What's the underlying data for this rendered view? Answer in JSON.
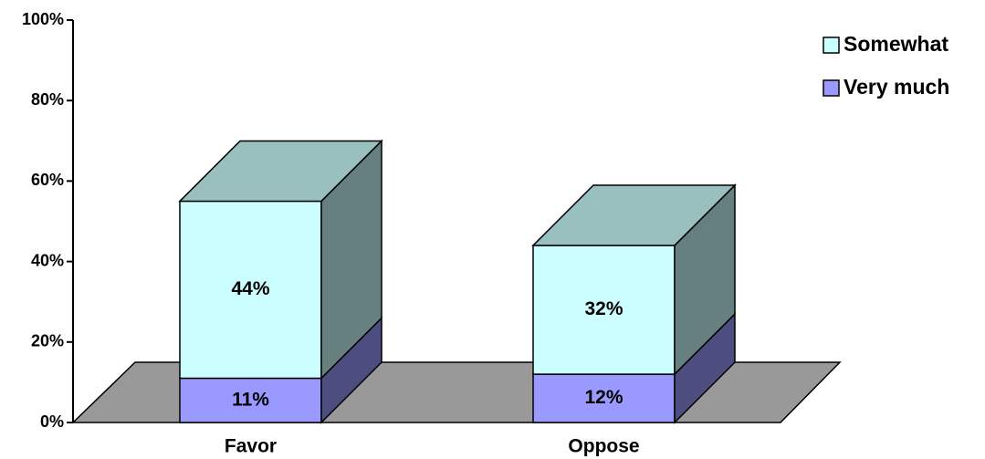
{
  "chart_data": {
    "type": "stacked-bar-3d",
    "categories": [
      "Favor",
      "Oppose"
    ],
    "series": [
      {
        "name": "Very much",
        "color": "#9999ff",
        "values": [
          11,
          12
        ],
        "value_labels": [
          "11%",
          "12%"
        ]
      },
      {
        "name": "Somewhat",
        "color": "#ccffff",
        "values": [
          44,
          32
        ],
        "value_labels": [
          "44%",
          "32%"
        ]
      }
    ],
    "ylim": [
      0,
      100
    ],
    "yticks": [
      {
        "value": 0,
        "label": "0%"
      },
      {
        "value": 20,
        "label": "20%"
      },
      {
        "value": 40,
        "label": "40%"
      },
      {
        "value": 60,
        "label": "60%"
      },
      {
        "value": 80,
        "label": "80%"
      },
      {
        "value": 100,
        "label": "100%"
      }
    ],
    "legend": "top-right"
  }
}
